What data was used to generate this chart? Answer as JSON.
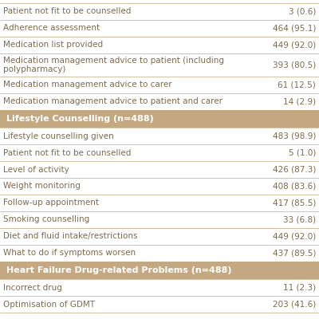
{
  "rows": [
    {
      "label": "Patient not fit to be counselled",
      "value": "3 (0.6)",
      "type": "data"
    },
    {
      "label": "Adherence assessment",
      "value": "464 (95.1)",
      "type": "data"
    },
    {
      "label": "Medication list provided",
      "value": "449 (92.0)",
      "type": "data"
    },
    {
      "label": "Medication management advice to patient (including\npolypharmacy)",
      "value": "393 (80.5)",
      "type": "data"
    },
    {
      "label": "Medication management advice to carer",
      "value": "61 (12.5)",
      "type": "data"
    },
    {
      "label": "Medication management advice to patient and carer",
      "value": "14 (2.9)",
      "type": "data"
    },
    {
      "label": "Lifestyle Counselling (n=488)",
      "value": "",
      "type": "header"
    },
    {
      "label": "Lifestyle counselling given",
      "value": "483 (98.9)",
      "type": "data"
    },
    {
      "label": "Patient not fit to be counselled",
      "value": "5 (1.0)",
      "type": "data"
    },
    {
      "label": "Level of activity",
      "value": "426 (87.3)",
      "type": "data"
    },
    {
      "label": "Weight monitoring",
      "value": "408 (83.6)",
      "type": "data"
    },
    {
      "label": "Follow-up appointment",
      "value": "417 (85.5)",
      "type": "data"
    },
    {
      "label": "Smoking counselling",
      "value": "33 (6.8)",
      "type": "data"
    },
    {
      "label": "Diet and fluid intake/restrictions",
      "value": "449 (92.0)",
      "type": "data"
    },
    {
      "label": "What to do if symptoms worsen",
      "value": "437 (89.5)",
      "type": "data"
    },
    {
      "label": "Heart Failure Drug-related Problems (n=488)",
      "value": "",
      "type": "header"
    },
    {
      "label": "Incorrect drug",
      "value": "11 (2.3)",
      "type": "data"
    },
    {
      "label": "Optimisation of GDMT",
      "value": "203 (41.6)",
      "type": "data"
    }
  ],
  "header_bg": "#C4A882",
  "header_text": "#FFFFFF",
  "data_text": "#7B6B4E",
  "separator_color": "#C4A882",
  "bg_color": "#FFFFFF",
  "font_size": 7.5,
  "header_font_size": 8.0
}
